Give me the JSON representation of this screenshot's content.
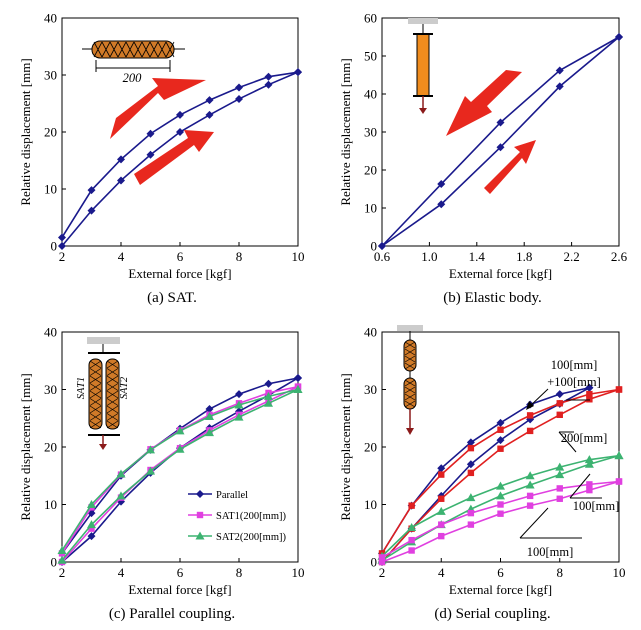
{
  "chart_data": [
    {
      "type": "line",
      "caption": "(a) SAT.",
      "xlabel": "External force  [kgf]",
      "ylabel": "Relative displacement  [mm]",
      "xlim": [
        2,
        10
      ],
      "ylim": [
        0,
        40
      ],
      "xticks": [
        2,
        4,
        6,
        8,
        10
      ],
      "yticks": [
        0,
        10,
        20,
        30,
        40
      ],
      "inset_label": "200",
      "series": [
        {
          "x": [
            2,
            3,
            4,
            5,
            6,
            7,
            8,
            9,
            10
          ],
          "y": [
            1.5,
            9.8,
            15.2,
            19.7,
            23.0,
            25.6,
            27.8,
            29.7,
            30.5
          ]
        },
        {
          "x": [
            2,
            3,
            4,
            5,
            6,
            7,
            8,
            9,
            10
          ],
          "y": [
            0,
            6.2,
            11.5,
            16.0,
            20.0,
            23.0,
            25.8,
            28.3,
            30.5
          ]
        }
      ]
    },
    {
      "type": "line",
      "caption": "(b) Elastic body.",
      "xlabel": "External force  [kgf]",
      "ylabel": "Relative displacement  [mm]",
      "xlim": [
        0.6,
        2.6
      ],
      "ylim": [
        0,
        60
      ],
      "xticks": [
        "0.6",
        "1.0",
        "1.4",
        "1.8",
        "2.2",
        "2.6"
      ],
      "yticks": [
        0,
        10,
        20,
        30,
        40,
        50,
        60
      ],
      "series": [
        {
          "x": [
            0.6,
            1.1,
            1.6,
            2.1,
            2.6
          ],
          "y": [
            0,
            16.3,
            32.5,
            46.2,
            55
          ]
        },
        {
          "x": [
            0.6,
            1.1,
            1.6,
            2.1,
            2.6
          ],
          "y": [
            0,
            11.0,
            26.0,
            42.0,
            55
          ]
        }
      ]
    },
    {
      "type": "line",
      "caption": "(c) Parallel coupling.",
      "xlabel": "External force  [kgf]",
      "ylabel": "Relative displacement  [mm]",
      "xlim": [
        2,
        10
      ],
      "ylim": [
        0,
        40
      ],
      "xticks": [
        2,
        4,
        6,
        8,
        10
      ],
      "yticks": [
        0,
        10,
        20,
        30,
        40
      ],
      "inset_labels": [
        "SAT1",
        "SAT2"
      ],
      "series": [
        {
          "name": "Parallel",
          "color": "#1a1a8c",
          "marker": "diamond",
          "x": [
            2,
            3,
            4,
            5,
            6,
            7,
            8,
            9,
            10
          ],
          "y_upper": [
            1.5,
            8.5,
            15.0,
            19.5,
            23.2,
            26.6,
            29.2,
            31.0,
            32.0
          ],
          "y_lower": [
            0,
            4.5,
            10.5,
            15.5,
            19.8,
            23.3,
            26.2,
            29.0,
            32.0
          ]
        },
        {
          "name": "SAT1(200[mm])",
          "color": "#e040e0",
          "marker": "square",
          "x": [
            2,
            3,
            4,
            5,
            6,
            7,
            8,
            9,
            10
          ],
          "y_upper": [
            1.5,
            9.5,
            15.2,
            19.6,
            22.9,
            25.6,
            27.6,
            29.4,
            30.5
          ],
          "y_lower": [
            0,
            5.8,
            11.2,
            16.0,
            19.8,
            22.9,
            25.6,
            28.0,
            30.5
          ]
        },
        {
          "name": "SAT2(200[mm])",
          "color": "#3cb371",
          "marker": "triangle",
          "x": [
            2,
            3,
            4,
            5,
            6,
            7,
            8,
            9,
            10
          ],
          "y_upper": [
            2.0,
            10.0,
            15.3,
            19.5,
            22.8,
            25.3,
            27.3,
            28.8,
            30.0
          ],
          "y_lower": [
            0.3,
            6.5,
            11.5,
            15.8,
            19.6,
            22.5,
            25.2,
            27.6,
            30.0
          ]
        }
      ]
    },
    {
      "type": "line",
      "caption": "(d) Serial coupling.",
      "xlabel": "External force  [kgf]",
      "ylabel": "Relative displacement  [mm]",
      "xlim": [
        2,
        10
      ],
      "ylim": [
        0,
        40
      ],
      "xticks": [
        2,
        4,
        6,
        8,
        10
      ],
      "yticks": [
        0,
        10,
        20,
        30,
        40
      ],
      "annotations": [
        "100[mm]",
        "+100[mm]",
        "200[mm]",
        "100[mm]",
        "100[mm]"
      ],
      "series": [
        {
          "label": "100[mm] +100[mm]",
          "color": "#1a1a8c",
          "marker": "diamond",
          "x_upper": [
            2,
            3,
            4,
            5,
            6,
            7,
            8,
            9
          ],
          "y_upper": [
            1.5,
            9.8,
            16.3,
            20.8,
            24.2,
            27.4,
            29.2,
            30.3
          ],
          "x_lower": [
            2,
            3,
            4,
            5,
            6,
            7,
            8,
            9
          ],
          "y_lower": [
            0,
            5.8,
            11.5,
            17.0,
            21.2,
            24.8,
            27.5,
            30.3
          ]
        },
        {
          "label": "200[mm]",
          "color": "#e02020",
          "marker": "square",
          "x_upper": [
            2,
            3,
            4,
            5,
            6,
            7,
            8,
            9,
            10
          ],
          "y_upper": [
            1.5,
            9.8,
            15.2,
            19.8,
            23.0,
            25.5,
            27.6,
            29.2,
            30.0
          ],
          "x_lower": [
            2,
            3,
            4,
            5,
            6,
            7,
            8,
            9,
            10
          ],
          "y_lower": [
            0,
            5.8,
            11.0,
            15.5,
            19.7,
            22.8,
            25.6,
            28.3,
            30.0
          ]
        },
        {
          "label": "100[mm]",
          "color": "#3cb371",
          "marker": "triangle",
          "x_upper": [
            2,
            3,
            4,
            5,
            6,
            7,
            8,
            9,
            10
          ],
          "y_upper": [
            1.0,
            6.0,
            8.8,
            11.2,
            13.2,
            15.0,
            16.5,
            17.8,
            18.5
          ],
          "x_lower": [
            2,
            3,
            4,
            5,
            6,
            7,
            8,
            9,
            10
          ],
          "y_lower": [
            0.3,
            3.5,
            6.5,
            9.2,
            11.5,
            13.4,
            15.2,
            17.0,
            18.5
          ]
        },
        {
          "label": "100[mm]",
          "color": "#e040e0",
          "marker": "square",
          "x_upper": [
            2,
            3,
            4,
            5,
            6,
            7,
            8,
            9,
            10
          ],
          "y_upper": [
            0.8,
            3.8,
            6.5,
            8.5,
            10.0,
            11.5,
            12.8,
            13.5,
            14.0
          ],
          "x_lower": [
            2,
            3,
            4,
            5,
            6,
            7,
            8,
            9,
            10
          ],
          "y_lower": [
            0,
            2.0,
            4.5,
            6.5,
            8.4,
            9.8,
            11.0,
            12.5,
            14.0
          ]
        }
      ]
    }
  ]
}
